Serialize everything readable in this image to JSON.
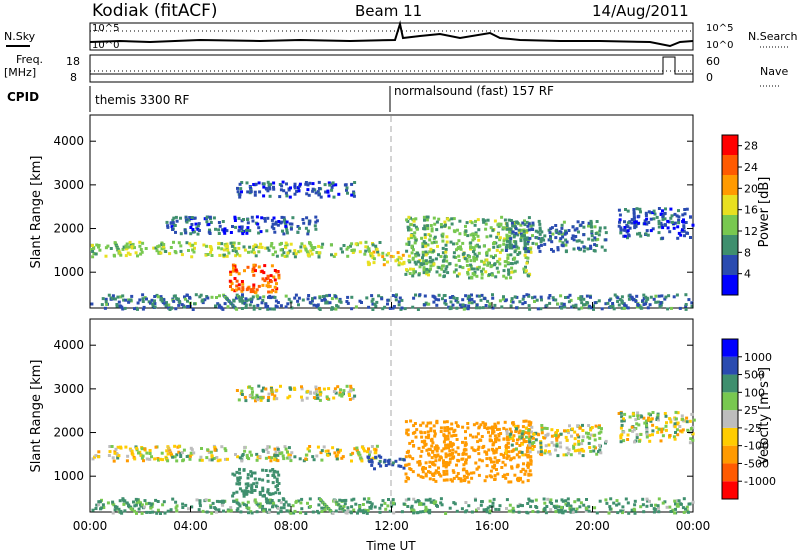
{
  "header": {
    "station": "Kodiak (fitACF)",
    "beam": "Beam 11",
    "date": "14/Aug/2011"
  },
  "top_panel": {
    "left_labels": [
      "N.Sky",
      "Freq.",
      "[MHz]",
      "CPID"
    ],
    "right_labels": [
      "N.Search",
      "Nave"
    ],
    "noise_ticks_left": [
      "10^5",
      "10^0"
    ],
    "noise_ticks_right": [
      "10^5",
      "10^0"
    ],
    "freq_ticks_left": [
      "18",
      "8"
    ],
    "nave_ticks_right": [
      "60",
      "0"
    ],
    "cpid_segments": [
      {
        "label": "themis 3300 RF",
        "start": "00:00"
      },
      {
        "label": "normalsound (fast) 157 RF",
        "start": "12:00"
      }
    ]
  },
  "colors": {
    "power_scale": [
      "#0000ff",
      "#2a4bb0",
      "#3f8f6e",
      "#78c850",
      "#e8e020",
      "#ff9a00",
      "#ff5a00",
      "#ff0000"
    ],
    "velocity_scale": [
      "#0000ff",
      "#2a4bb0",
      "#3f8f6e",
      "#78c850",
      "#bdbdbd",
      "#ffcc00",
      "#ff9a00",
      "#ff5a00",
      "#ff0000"
    ]
  },
  "chart_data": [
    {
      "type": "heatmap",
      "name": "power",
      "ylabel": "Slant Range [km]",
      "yticks": [
        "1000",
        "2000",
        "3000",
        "4000"
      ],
      "ylim": [
        180,
        4600
      ],
      "xlim": [
        0,
        24
      ],
      "xticks": [
        "00:00",
        "04:00",
        "08:00",
        "12:00",
        "16:00",
        "20:00",
        "00:00"
      ],
      "colorbar": {
        "label": "Power [dB]",
        "ticks": [
          "4",
          "8",
          "12",
          "16",
          "20",
          "24",
          "28"
        ],
        "range": [
          0,
          30
        ]
      },
      "blobs": [
        {
          "t0": 0.0,
          "t1": 11.5,
          "r0": 1380,
          "r1": 1720,
          "power": 14
        },
        {
          "t0": 5.5,
          "t1": 7.5,
          "r0": 560,
          "r1": 1200,
          "power": 24
        },
        {
          "t0": 5.8,
          "t1": 10.5,
          "r0": 2750,
          "r1": 3100,
          "power": 6
        },
        {
          "t0": 3.0,
          "t1": 9.0,
          "r0": 1900,
          "r1": 2300,
          "power": 6
        },
        {
          "t0": 11.0,
          "t1": 12.5,
          "r0": 1200,
          "r1": 1500,
          "power": 18
        },
        {
          "t0": 12.5,
          "t1": 17.5,
          "r0": 900,
          "r1": 2300,
          "power": 12
        },
        {
          "t0": 16.5,
          "t1": 20.5,
          "r0": 1500,
          "r1": 2200,
          "power": 8
        },
        {
          "t0": 21.0,
          "t1": 24.0,
          "r0": 1800,
          "r1": 2500,
          "power": 6
        },
        {
          "t0": 0.0,
          "t1": 24.0,
          "r0": 180,
          "r1": 520,
          "power": 8
        }
      ]
    },
    {
      "type": "heatmap",
      "name": "velocity",
      "ylabel": "Slant Range [km]",
      "yticks": [
        "1000",
        "2000",
        "3000",
        "4000"
      ],
      "ylim": [
        180,
        4600
      ],
      "xlim": [
        0,
        24
      ],
      "xticks": [
        "00:00",
        "04:00",
        "08:00",
        "12:00",
        "16:00",
        "20:00",
        "00:00"
      ],
      "xlabel": "Time UT",
      "colorbar": {
        "label": "Velocity [m s^-1]",
        "ticks": [
          "1000",
          "500",
          "100",
          "25",
          "-25",
          "-100",
          "-500",
          "-1000"
        ]
      },
      "blobs": [
        {
          "t0": 0.0,
          "t1": 11.5,
          "r0": 1380,
          "r1": 1720,
          "velocity": 0
        },
        {
          "t0": 5.5,
          "t1": 7.5,
          "r0": 560,
          "r1": 1200,
          "velocity": 300
        },
        {
          "t0": 5.8,
          "t1": 10.5,
          "r0": 2750,
          "r1": 3100,
          "velocity": 0
        },
        {
          "t0": 11.0,
          "t1": 12.5,
          "r0": 1200,
          "r1": 1500,
          "velocity": 600
        },
        {
          "t0": 12.5,
          "t1": 17.5,
          "r0": 900,
          "r1": 2300,
          "velocity": -300
        },
        {
          "t0": 16.5,
          "t1": 20.5,
          "r0": 1500,
          "r1": 2200,
          "velocity": 0
        },
        {
          "t0": 21.0,
          "t1": 24.0,
          "r0": 1800,
          "r1": 2500,
          "velocity": 0
        },
        {
          "t0": 0.0,
          "t1": 24.0,
          "r0": 180,
          "r1": 520,
          "velocity": 150
        }
      ]
    }
  ]
}
